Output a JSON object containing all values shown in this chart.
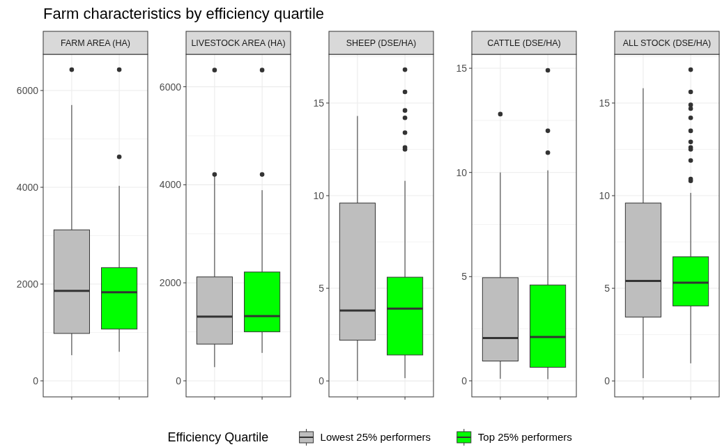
{
  "chart_data": [
    {
      "type": "box",
      "title": "Farm characteristics by efficiency quartile",
      "subtitle": "FARM AREA (HA)",
      "legend": "bottom",
      "legend_title": "Efficiency Quartile",
      "grid": true,
      "tick_labels": "y",
      "categories": [
        null,
        null
      ],
      "ylim": [
        -331,
        6748
      ],
      "yticks": [
        0,
        2000,
        4000,
        6000
      ],
      "series": [
        {
          "name": "Lowest 25% performers",
          "color": "#bebebe",
          "boxes": [
            {
              "low": 530,
              "q1": 980,
              "median": 1860,
              "q3": 3120,
              "high": 5700,
              "outliers": [
                6430
              ]
            },
            null
          ]
        },
        {
          "name": "Top 25% performers",
          "color": "#00ff00",
          "boxes": [
            null,
            {
              "low": 600,
              "q1": 1070,
              "median": 1830,
              "q3": 2340,
              "high": 4030,
              "outliers": [
                6430,
                4630
              ]
            }
          ]
        }
      ]
    },
    {
      "type": "box",
      "subtitle": "LIVESTOCK AREA (HA)",
      "grid": true,
      "tick_labels": "y",
      "categories": [
        null,
        null
      ],
      "ylim": [
        -327,
        6662
      ],
      "yticks": [
        0,
        2000,
        4000,
        6000
      ],
      "series": [
        {
          "color": "#bebebe",
          "boxes": [
            {
              "low": 280,
              "q1": 750,
              "median": 1310,
              "q3": 2120,
              "high": 4180,
              "outliers": [
                6340,
                4210
              ]
            },
            null
          ]
        },
        {
          "color": "#00ff00",
          "boxes": [
            null,
            {
              "low": 570,
              "q1": 1000,
              "median": 1320,
              "q3": 2220,
              "high": 3890,
              "outliers": [
                6340,
                4210
              ]
            }
          ]
        }
      ]
    },
    {
      "type": "box",
      "subtitle": "SHEEP (DSE/HA)",
      "grid": true,
      "tick_labels": "y",
      "categories": [
        null,
        null
      ],
      "ylim": [
        -0.86,
        17.63
      ],
      "yticks": [
        0,
        5,
        10,
        15
      ],
      "series": [
        {
          "color": "#bebebe",
          "boxes": [
            {
              "low": 0,
              "q1": 2.2,
              "median": 3.8,
              "q3": 9.6,
              "high": 14.3
            },
            null
          ]
        },
        {
          "color": "#00ff00",
          "boxes": [
            null,
            {
              "low": 0.15,
              "q1": 1.4,
              "median": 3.9,
              "q3": 5.6,
              "high": 10.8,
              "outliers": [
                16.8,
                15.6,
                14.6,
                14.2,
                13.4,
                12.6,
                12.5
              ]
            }
          ]
        }
      ]
    },
    {
      "type": "box",
      "subtitle": "CATTLE (DSE/HA)",
      "grid": true,
      "tick_labels": "y",
      "categories": [
        null,
        null
      ],
      "ylim": [
        -0.77,
        15.67
      ],
      "yticks": [
        0,
        5,
        10,
        15
      ],
      "series": [
        {
          "color": "#bebebe",
          "boxes": [
            {
              "low": 0.1,
              "q1": 0.95,
              "median": 2.05,
              "q3": 4.95,
              "high": 10,
              "outliers": [
                12.8
              ]
            },
            null
          ]
        },
        {
          "color": "#00ff00",
          "boxes": [
            null,
            {
              "low": 0.08,
              "q1": 0.65,
              "median": 2.1,
              "q3": 4.6,
              "high": 10.1,
              "outliers": [
                14.9,
                12,
                10.95
              ]
            }
          ]
        }
      ]
    },
    {
      "type": "box",
      "subtitle": "ALL STOCK (DSE/HA)",
      "grid": true,
      "tick_labels": "y",
      "categories": [
        null,
        null
      ],
      "ylim": [
        -0.86,
        17.63
      ],
      "yticks": [
        0,
        5,
        10,
        15
      ],
      "series": [
        {
          "color": "#bebebe",
          "boxes": [
            {
              "low": 0.15,
              "q1": 3.45,
              "median": 5.4,
              "q3": 9.6,
              "high": 15.8
            },
            null
          ]
        },
        {
          "color": "#00ff00",
          "boxes": [
            null,
            {
              "low": 0.95,
              "q1": 4.05,
              "median": 5.3,
              "q3": 6.7,
              "high": 10.15,
              "outliers": [
                16.8,
                15.6,
                14.9,
                14.7,
                14.2,
                13.5,
                12.9,
                12.6,
                12.5,
                11.9,
                10.9,
                10.8
              ]
            }
          ]
        }
      ]
    }
  ]
}
